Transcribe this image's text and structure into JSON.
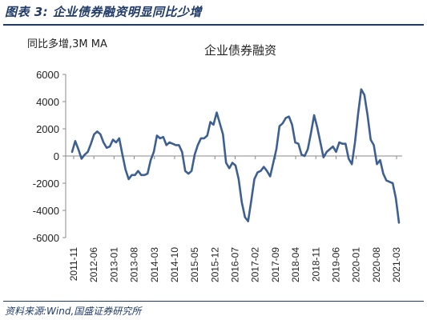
{
  "figure_title": "图表 3:  企业债券融资明显同比少增",
  "source": "资料来源:Wind,国盛证券研究所",
  "colors": {
    "line": "#3d5f92",
    "title": "#1f3a68"
  },
  "chart_data": {
    "type": "line",
    "title": "企业债券融资",
    "unit_label": "同比多增,3M MA",
    "xlabel": "",
    "ylabel": "",
    "ylim": [
      -6000,
      6000
    ],
    "yticks": [
      6000,
      4000,
      2000,
      0,
      -2000,
      -4000,
      -6000
    ],
    "xticks": [
      "2011-11",
      "2012-06",
      "2013-01",
      "2013-08",
      "2014-03",
      "2014-10",
      "2015-05",
      "2015-12",
      "2016-07",
      "2017-02",
      "2017-09",
      "2018-04",
      "2018-11",
      "2019-06",
      "2020-01",
      "2020-08",
      "2021-03"
    ],
    "grid": false,
    "legend": "none",
    "series": [
      {
        "values": [
          300,
          1100,
          500,
          -200,
          100,
          300,
          900,
          1600,
          1800,
          1600,
          1000,
          600,
          700,
          1200,
          1000,
          1300,
          100,
          -1000,
          -1700,
          -1400,
          -1400,
          -1100,
          -1400,
          -1400,
          -1300,
          -300,
          300,
          1500,
          1300,
          1400,
          800,
          1000,
          900,
          800,
          800,
          300,
          -1100,
          -1300,
          -1100,
          100,
          800,
          1300,
          1300,
          1500,
          2500,
          2300,
          3200,
          2400,
          1600,
          -500,
          -900,
          -500,
          -700,
          -1700,
          -3400,
          -4500,
          -4800,
          -3300,
          -1700,
          -1200,
          -1100,
          -800,
          -1100,
          -1500,
          -500,
          500,
          2200,
          2400,
          2800,
          2900,
          2300,
          1000,
          900,
          100,
          0,
          500,
          1700,
          3000,
          2100,
          1000,
          -100,
          300,
          500,
          700,
          300,
          1000,
          900,
          900,
          -200,
          -600,
          1000,
          3100,
          4900,
          4500,
          3000,
          1200,
          800,
          -600,
          -300,
          -1300,
          -1800,
          -1900,
          -2000,
          -3100,
          -4900
        ]
      }
    ]
  }
}
